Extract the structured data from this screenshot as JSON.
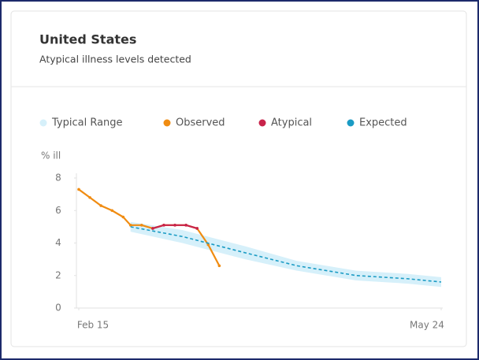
{
  "chart_data": {
    "type": "line",
    "title": "United States",
    "subtitle": "Atypical illness levels detected",
    "ylabel": "% ill",
    "ylim": [
      0,
      8
    ],
    "yticks": [
      0,
      2,
      4,
      6,
      8
    ],
    "xlim": [
      "Feb 15",
      "May 24"
    ],
    "xticks": [
      "Feb 15",
      "May 24"
    ],
    "band": {
      "name": "Typical Range",
      "color": "#d6f0fa",
      "x": [
        "Mar 1",
        "Mar 15",
        "Apr 1",
        "Apr 15",
        "May 1",
        "May 15",
        "May 24"
      ],
      "lower": [
        4.7,
        4.0,
        3.0,
        2.3,
        1.7,
        1.5,
        1.3
      ],
      "upper": [
        5.3,
        4.8,
        3.8,
        2.9,
        2.3,
        2.1,
        1.9
      ]
    },
    "series": [
      {
        "name": "Observed",
        "color": "#f08c12",
        "x": [
          "Feb 15",
          "Feb 18",
          "Feb 21",
          "Feb 24",
          "Feb 27",
          "Mar 1",
          "Mar 4",
          "Mar 7",
          "Mar 10",
          "Mar 13",
          "Mar 16",
          "Mar 19",
          "Mar 22",
          "Mar 25"
        ],
        "values": [
          7.3,
          6.8,
          6.3,
          6.0,
          5.6,
          5.1,
          5.1,
          4.9,
          5.1,
          5.1,
          5.1,
          4.9,
          3.9,
          2.6
        ]
      },
      {
        "name": "Atypical",
        "color": "#c8234a",
        "x": [
          "Mar 7",
          "Mar 10",
          "Mar 13",
          "Mar 16",
          "Mar 19"
        ],
        "values": [
          4.9,
          5.1,
          5.1,
          5.1,
          4.9
        ]
      },
      {
        "name": "Expected",
        "color": "#1a9bc4",
        "dashed": true,
        "x": [
          "Mar 1",
          "Mar 15",
          "Apr 1",
          "Apr 15",
          "May 1",
          "May 15",
          "May 24"
        ],
        "values": [
          5.0,
          4.4,
          3.4,
          2.6,
          2.0,
          1.8,
          1.6
        ]
      }
    ]
  }
}
